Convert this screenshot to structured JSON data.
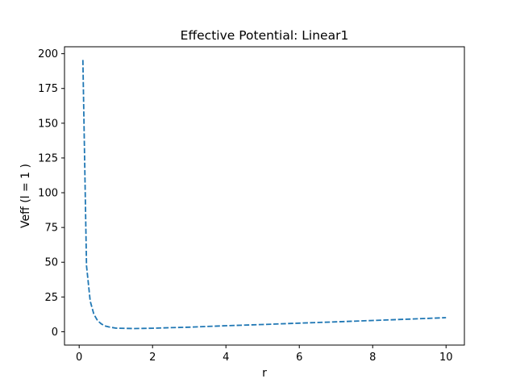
{
  "chart_data": {
    "type": "line",
    "title": "Effective Potential: Linear1",
    "xlabel": "r",
    "ylabel": "Veff (l = 1 )",
    "xlim": [
      -0.4,
      10.5
    ],
    "ylim": [
      -9.6,
      205
    ],
    "xticks": [
      0,
      2,
      4,
      6,
      8,
      10
    ],
    "yticks": [
      0,
      25,
      50,
      75,
      100,
      125,
      150,
      175,
      200
    ],
    "grid": false,
    "series": [
      {
        "line_style": "dashed",
        "color": "#1f77b4",
        "x": [
          0.1,
          0.2,
          0.3,
          0.4,
          0.5,
          0.6,
          0.7,
          0.8,
          1.0,
          1.25,
          1.5,
          1.75,
          2.0,
          2.5,
          3.0,
          4.0,
          5.0,
          6.0,
          7.0,
          8.0,
          9.0,
          10.0
        ],
        "y": [
          195.5,
          47.5,
          22.0,
          12.6,
          8.0,
          5.7,
          4.2,
          3.5,
          2.6,
          2.4,
          2.3,
          2.4,
          2.5,
          2.9,
          3.3,
          4.3,
          5.2,
          6.2,
          7.1,
          8.1,
          9.1,
          10.1
        ]
      }
    ]
  }
}
